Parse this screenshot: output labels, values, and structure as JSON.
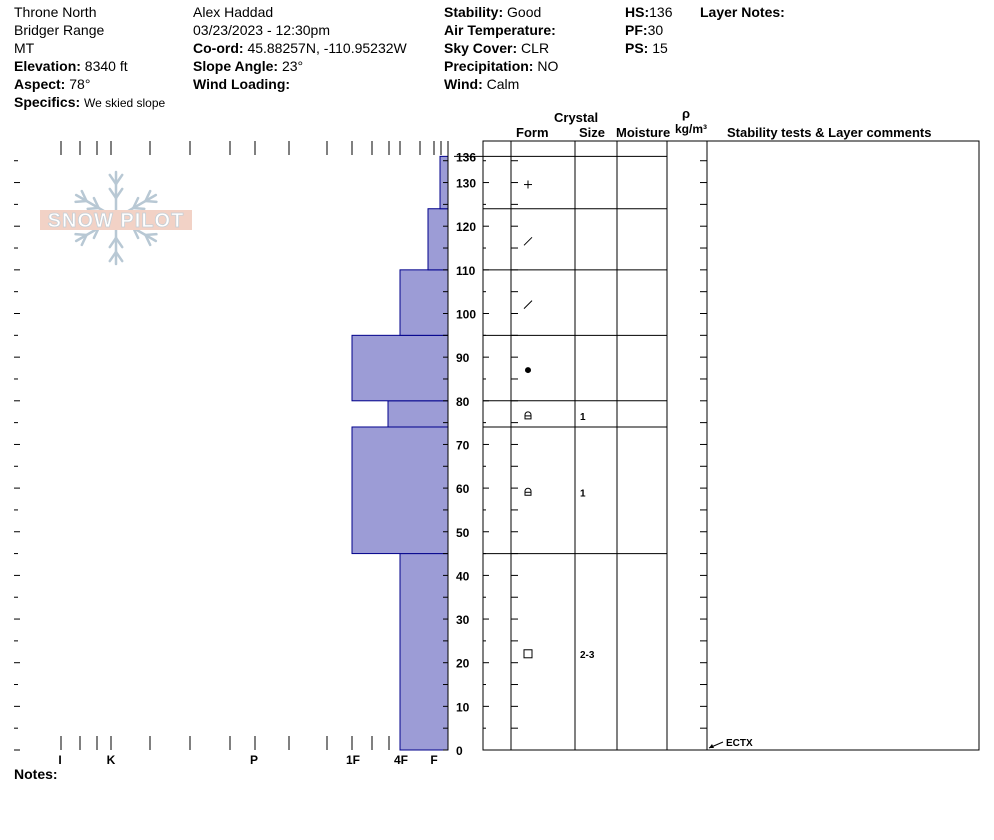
{
  "header": {
    "location": "Throne North",
    "range": "Bridger Range",
    "state": "MT",
    "elevation_label": "Elevation:",
    "elevation_value": "8340 ft",
    "aspect_label": "Aspect:",
    "aspect_value": "78°",
    "specifics_label": "Specifics:",
    "specifics_value": "We skied slope",
    "observer": "Alex Haddad",
    "datetime": "03/23/2023 - 12:30pm",
    "coord_label": "Co-ord:",
    "coord_value": "45.88257N, -110.95232W",
    "slope_label": "Slope Angle:",
    "slope_value": "23°",
    "wind_loading_label": "Wind Loading:",
    "stability_label": "Stability:",
    "stability_value": "Good",
    "air_temp_label": "Air Temperature:",
    "sky_label": "Sky Cover:",
    "sky_value": "CLR",
    "precip_label": "Precipitation:",
    "precip_value": "NO",
    "wind_label": "Wind:",
    "wind_value": "Calm",
    "hs_label": "HS:",
    "hs_value": "136",
    "pf_label": "PF:",
    "pf_value": "30",
    "ps_label": "PS:",
    "ps_value": "15",
    "layer_notes_label": "Layer Notes:"
  },
  "logo_text": "SNOW PILOT",
  "notes_label": "Notes:",
  "columns": {
    "crystal": "Crystal",
    "form": "Form",
    "size": "Size",
    "moisture": "Moisture",
    "rho": "ρ",
    "density_unit": "kg/m³",
    "comments": "Stability tests & Layer comments"
  },
  "colors": {
    "hardness_fill": "#9c9cd6",
    "hardness_stroke": "#00008b"
  },
  "chart_data": {
    "type": "bar",
    "orientation": "horizontal",
    "y_axis": {
      "label": "",
      "unit": "cm",
      "range": [
        0,
        136
      ],
      "ticks": [
        0,
        10,
        20,
        30,
        40,
        50,
        60,
        70,
        80,
        90,
        100,
        110,
        120,
        130,
        136
      ]
    },
    "x_axis": {
      "label": "",
      "reversed": true,
      "ticks": [
        "I",
        "K",
        "P",
        "1F",
        "4F",
        "F"
      ]
    },
    "layers": [
      {
        "bottom": 0,
        "top": 45,
        "hardness": "4F",
        "form": "square",
        "size": "2-3"
      },
      {
        "bottom": 45,
        "top": 74,
        "hardness": "1F",
        "form": "rounding-facet",
        "size": "1"
      },
      {
        "bottom": 74,
        "top": 80,
        "hardness": "1F-",
        "form": "rounding-facet",
        "size": "1"
      },
      {
        "bottom": 80,
        "top": 95,
        "hardness": "1F",
        "form": "rounded",
        "size": ""
      },
      {
        "bottom": 95,
        "top": 110,
        "hardness": "4F",
        "form": "decomposed",
        "size": ""
      },
      {
        "bottom": 110,
        "top": 124,
        "hardness": "F+",
        "form": "decomposed",
        "size": ""
      },
      {
        "bottom": 124,
        "top": 136,
        "hardness": "F-",
        "form": "new-snow",
        "size": ""
      }
    ],
    "stability_tests": [
      {
        "height": 0,
        "label": "ECTX"
      }
    ]
  }
}
